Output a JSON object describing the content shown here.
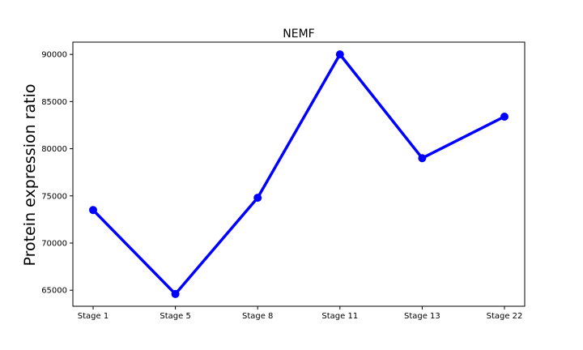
{
  "chart_data": {
    "type": "line",
    "title": "NEMF",
    "xlabel": "",
    "ylabel": "Protein expression ratio",
    "categories": [
      "Stage 1",
      "Stage 5",
      "Stage 8",
      "Stage 11",
      "Stage 13",
      "Stage 22"
    ],
    "series": [
      {
        "values": [
          73500,
          64600,
          74800,
          90000,
          79000,
          83400
        ],
        "color": "#0000ff",
        "marker": "circle"
      }
    ],
    "ylim": [
      63300,
      91300
    ],
    "yticks": [
      65000,
      70000,
      75000,
      80000,
      85000,
      90000
    ],
    "ytick_labels": [
      "65000",
      "70000",
      "75000",
      "80000",
      "85000",
      "90000"
    ],
    "grid": false,
    "legend": "none"
  }
}
